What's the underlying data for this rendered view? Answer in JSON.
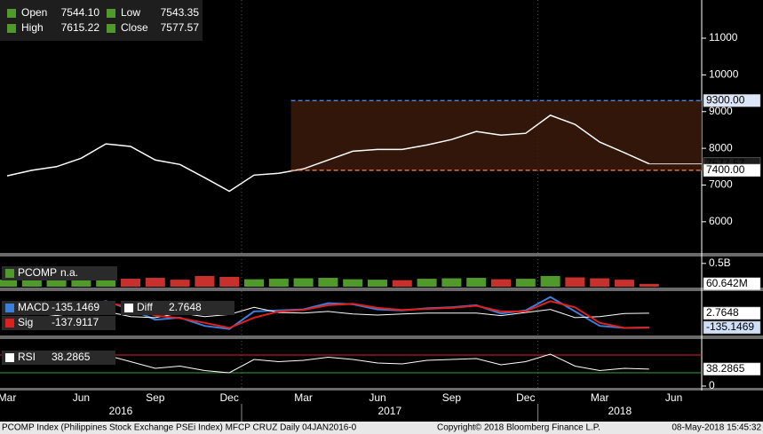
{
  "quote": [
    {
      "label": "Open",
      "value": "7544.10"
    },
    {
      "label": "Low",
      "value": "7543.35"
    },
    {
      "label": "High",
      "value": "7615.22"
    },
    {
      "label": "Close",
      "value": "7577.57"
    }
  ],
  "time_axis": {
    "xticks": [
      {
        "value": "2016-03",
        "label": "Mar"
      },
      {
        "value": "2016-06",
        "label": "Jun"
      },
      {
        "value": "2016-09",
        "label": "Sep"
      },
      {
        "value": "2016-12",
        "label": "Dec"
      },
      {
        "value": "2017-03",
        "label": "Mar"
      },
      {
        "value": "2017-06",
        "label": "Jun"
      },
      {
        "value": "2017-09",
        "label": "Sep"
      },
      {
        "value": "2017-12",
        "label": "Dec"
      },
      {
        "value": "2018-03",
        "label": "Mar"
      },
      {
        "value": "2018-06",
        "label": "Jun"
      }
    ],
    "years": [
      "2016",
      "2017",
      "2018"
    ]
  },
  "footer": {
    "left": "PCOMP Index (Philippines Stock Exchange PSEi Index) MFCP CRUZ  Daily 04JAN2016-0",
    "center": "Copyright© 2018 Bloomberg Finance L.P.",
    "right": "08-May-2018 15:45:32"
  },
  "chart_data": [
    {
      "type": "line",
      "x": [
        "2016-03",
        "2016-04",
        "2016-05",
        "2016-06",
        "2016-07",
        "2016-08",
        "2016-09",
        "2016-10",
        "2016-11",
        "2016-12",
        "2017-01",
        "2017-02",
        "2017-03",
        "2017-04",
        "2017-05",
        "2017-06",
        "2017-07",
        "2017-08",
        "2017-09",
        "2017-10",
        "2017-11",
        "2017-12",
        "2018-01",
        "2018-02",
        "2018-03",
        "2018-04",
        "2018-05"
      ],
      "values": [
        7250,
        7400,
        7500,
        7730,
        8120,
        8050,
        7680,
        7560,
        7200,
        6830,
        7270,
        7320,
        7440,
        7680,
        7920,
        7970,
        7970,
        8090,
        8240,
        8460,
        8360,
        8410,
        8900,
        8650,
        8170,
        7880,
        7577.57
      ],
      "color": "#ffffff",
      "tag_fill": "#1c1c1c",
      "ylim": [
        5150,
        12040
      ],
      "yticks": [
        6000,
        7000,
        8000,
        9000,
        10000,
        11000
      ],
      "box_start": "2017-03",
      "levels": [
        {
          "value": 9300,
          "label": "9300.00",
          "color": "#4a7fd4",
          "tag_fill": "#dce6f6"
        },
        {
          "value": 7400,
          "label": "7400.00",
          "color": "#e0703c",
          "tag_fill": "#ffffff"
        }
      ]
    },
    {
      "type": "bar",
      "x": [
        "2016-03",
        "2016-04",
        "2016-05",
        "2016-06",
        "2016-07",
        "2016-08",
        "2016-09",
        "2016-10",
        "2016-11",
        "2016-12",
        "2017-01",
        "2017-02",
        "2017-03",
        "2017-04",
        "2017-05",
        "2017-06",
        "2017-07",
        "2017-08",
        "2017-09",
        "2017-10",
        "2017-11",
        "2017-12",
        "2018-01",
        "2018-02",
        "2018-03",
        "2018-04",
        "2018-05"
      ],
      "series": [
        {
          "name": "PCOMP",
          "color": "#4f9a2a",
          "values": [
            150000000,
            180000000,
            140000000,
            200000000,
            260000000,
            170000000,
            190000000,
            150000000,
            230000000,
            210000000,
            160000000,
            170000000,
            180000000,
            190000000,
            160000000,
            150000000,
            140000000,
            170000000,
            180000000,
            190000000,
            160000000,
            170000000,
            230000000,
            200000000,
            180000000,
            150000000,
            60642000
          ],
          "colors": [
            "#4f9a2a",
            "#4f9a2a",
            "#4f9a2a",
            "#4f9a2a",
            "#4f9a2a",
            "#c8302c",
            "#c8302c",
            "#c8302c",
            "#c8302c",
            "#c8302c",
            "#4f9a2a",
            "#4f9a2a",
            "#4f9a2a",
            "#4f9a2a",
            "#4f9a2a",
            "#4f9a2a",
            "#c8302c",
            "#4f9a2a",
            "#4f9a2a",
            "#4f9a2a",
            "#c8302c",
            "#4f9a2a",
            "#4f9a2a",
            "#c8302c",
            "#c8302c",
            "#c8302c",
            "#c8302c"
          ],
          "value_labels": [
            null,
            null,
            null,
            null,
            null,
            null,
            null,
            null,
            null,
            null,
            null,
            null,
            null,
            null,
            null,
            null,
            null,
            null,
            null,
            null,
            null,
            null,
            null,
            null,
            null,
            null,
            "60.642M"
          ],
          "tag_fill": "#ffffff"
        }
      ],
      "status": "n.a.",
      "ylim": [
        0,
        630000000
      ],
      "yticks": [
        {
          "value": 500000000,
          "label": "0.5B"
        }
      ]
    },
    {
      "type": "line",
      "x": [
        "2016-03",
        "2016-04",
        "2016-05",
        "2016-06",
        "2016-07",
        "2016-08",
        "2016-09",
        "2016-10",
        "2016-11",
        "2016-12",
        "2017-01",
        "2017-02",
        "2017-03",
        "2017-04",
        "2017-05",
        "2017-06",
        "2017-07",
        "2017-08",
        "2017-09",
        "2017-10",
        "2017-11",
        "2017-12",
        "2018-01",
        "2018-02",
        "2018-03",
        "2018-04",
        "2018-05"
      ],
      "ylim": [
        -213,
        200
      ],
      "series": [
        {
          "name": "MACD",
          "color": "#3c7fd8",
          "tag_fill": "#cfdff6",
          "values": [
            40,
            60,
            20,
            60,
            120,
            40,
            -60,
            -40,
            -120,
            -150,
            20,
            30,
            40,
            100,
            90,
            40,
            30,
            50,
            60,
            80,
            0,
            30,
            160,
            20,
            -120,
            -140,
            -135.1469
          ]
        },
        {
          "name": "Diff",
          "color": "#ffffff",
          "tag_fill": "#ffffff",
          "values": [
            10,
            10,
            -20,
            15,
            20,
            -30,
            -40,
            5,
            -30,
            -10,
            60,
            10,
            5,
            20,
            -5,
            -15,
            -5,
            5,
            5,
            5,
            -20,
            10,
            40,
            -40,
            -30,
            0,
            2.7648
          ]
        },
        {
          "name": "Sig",
          "color": "#e02020",
          "values": [
            30,
            50,
            40,
            45,
            100,
            70,
            -20,
            -45,
            -90,
            -140,
            -40,
            20,
            35,
            80,
            95,
            55,
            35,
            45,
            55,
            75,
            20,
            20,
            120,
            60,
            -90,
            -140,
            -137.9117
          ]
        }
      ]
    },
    {
      "type": "line",
      "x": [
        "2016-03",
        "2016-04",
        "2016-05",
        "2016-06",
        "2016-07",
        "2016-08",
        "2016-09",
        "2016-10",
        "2016-11",
        "2016-12",
        "2017-01",
        "2017-02",
        "2017-03",
        "2017-04",
        "2017-05",
        "2017-06",
        "2017-07",
        "2017-08",
        "2017-09",
        "2017-10",
        "2017-11",
        "2017-12",
        "2018-01",
        "2018-02",
        "2018-03",
        "2018-04",
        "2018-05"
      ],
      "ylim": [
        -4,
        104
      ],
      "yticks": [
        0
      ],
      "series": [
        {
          "name": "RSI",
          "color": "#ffffff",
          "tag_fill": "#ffffff",
          "values": [
            55,
            60,
            50,
            62,
            70,
            55,
            40,
            45,
            35,
            30,
            60,
            55,
            58,
            65,
            60,
            52,
            50,
            58,
            60,
            62,
            48,
            55,
            72,
            45,
            35,
            40,
            38.2865
          ]
        }
      ],
      "levels": [
        {
          "value": 70,
          "color": "#e02020"
        },
        {
          "value": 30,
          "color": "#3aa02f"
        }
      ]
    }
  ]
}
